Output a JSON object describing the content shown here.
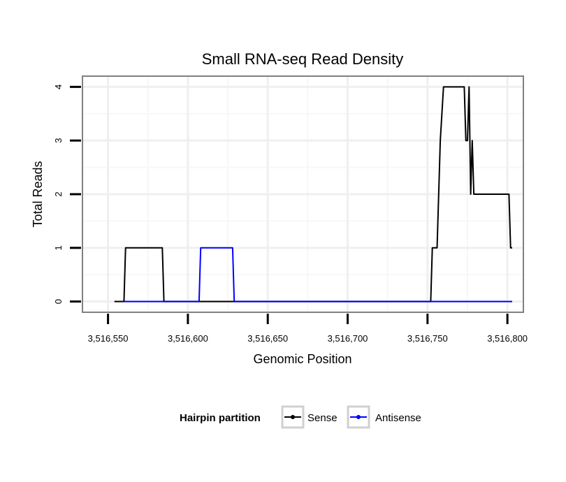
{
  "chart_data": {
    "type": "line",
    "title": "Small RNA-seq Read Density",
    "xlabel": "Genomic Position",
    "ylabel": "Total Reads",
    "xlim": [
      3516534,
      3516810
    ],
    "ylim": [
      -0.2,
      4.2
    ],
    "x_ticks": [
      3516550,
      3516600,
      3516650,
      3516700,
      3516750,
      3516800
    ],
    "x_tick_labels": [
      "3,516,550",
      "3,516,600",
      "3,516,650",
      "3,516,700",
      "3,516,750",
      "3,516,800"
    ],
    "y_ticks": [
      0,
      1,
      2,
      3,
      4
    ],
    "y_tick_labels": [
      "0",
      "1",
      "2",
      "3",
      "4"
    ],
    "grid": true,
    "legend": {
      "title": "Hairpin partition",
      "position": "bottom",
      "entries": [
        "Sense",
        "Antisense"
      ]
    },
    "series": [
      {
        "name": "Sense",
        "color": "#000000",
        "x": [
          3516554,
          3516560,
          3516561,
          3516584,
          3516585,
          3516752,
          3516753,
          3516756,
          3516758,
          3516760,
          3516773,
          3516774,
          3516775,
          3516776,
          3516777,
          3516778,
          3516779,
          3516780,
          3516801,
          3516802,
          3516803
        ],
        "y": [
          0,
          0,
          1,
          1,
          0,
          0,
          1,
          1,
          3,
          4,
          4,
          3,
          3,
          4,
          2,
          3,
          2,
          2,
          2,
          1,
          1
        ]
      },
      {
        "name": "Antisense",
        "color": "#0000ff",
        "x": [
          3516560,
          3516607,
          3516608,
          3516628,
          3516629,
          3516803
        ],
        "y": [
          0,
          0,
          1,
          1,
          0,
          0
        ]
      }
    ]
  }
}
